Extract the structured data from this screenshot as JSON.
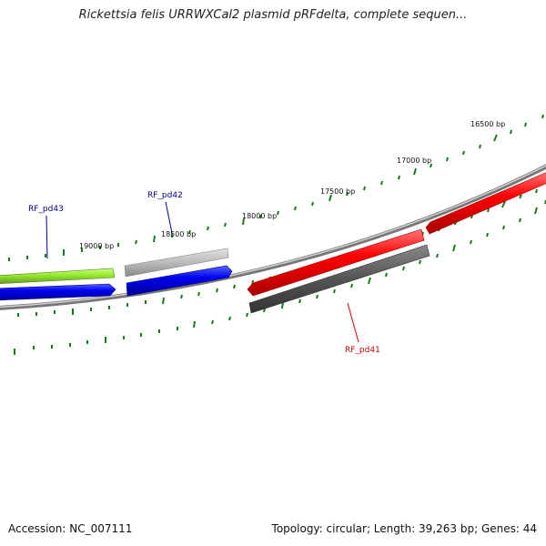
{
  "title": "Rickettsia felis URRWXCal2 plasmid pRFdelta, complete sequen...",
  "accession_text": "Accession: NC_007111",
  "topology_text": "Topology: circular; Length: 39,263 bp; Genes: 44",
  "tick_labels": [
    "16500 bp",
    "17000 bp",
    "17500 bp",
    "18000 bp",
    "18500 bp",
    "19000 bp"
  ],
  "gene_labels": [
    {
      "id": "RF_pd43",
      "color": "#00008b"
    },
    {
      "id": "RF_pd42",
      "color": "#00008b"
    },
    {
      "id": "RF_pd41",
      "color": "#cc0000"
    }
  ],
  "colors": {
    "tick": "#1a7a1a",
    "backbone": "#888888",
    "forward_gene": "#ff0000",
    "reverse_gene": "#0000dd",
    "green_gene": "#99ee33",
    "light_gray_gene": "#bbbbbb",
    "dark_gray_gene": "#555555"
  }
}
